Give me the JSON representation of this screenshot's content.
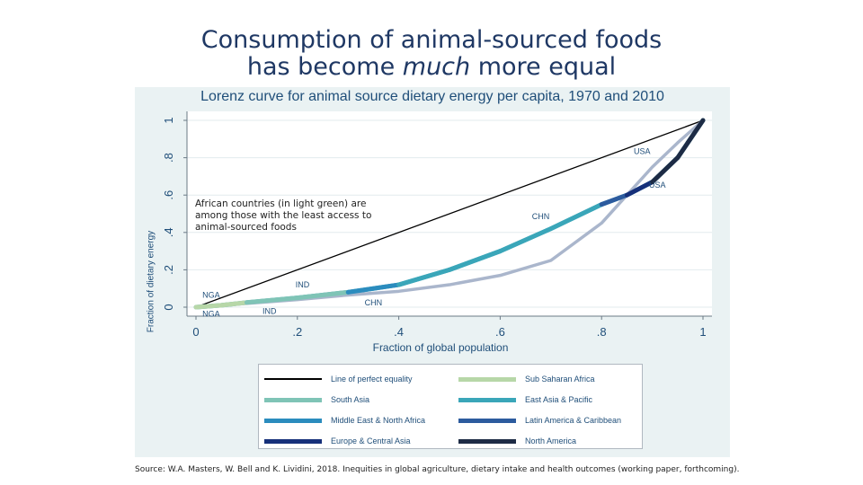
{
  "slide": {
    "title_line1": "Consumption of animal-sourced foods",
    "title_line2_pre": "has become ",
    "title_line2_em": "much",
    "title_line2_post": " more equal",
    "note": "African countries (in light green) are among those with the least access to animal-sourced foods",
    "source": "Source: W.A. Masters, W. Bell and K. Lividini, 2018. Inequities in global agriculture, dietary intake and health outcomes (working paper, forthcoming)."
  },
  "chart_data": {
    "type": "line",
    "title": "Lorenz curve for animal source dietary energy per capita, 1970 and 2010",
    "xlabel": "Fraction of global population",
    "ylabel": "Fraction of dietary energy",
    "xlim": [
      0,
      1
    ],
    "ylim": [
      0,
      1
    ],
    "xticks": [
      "0",
      ".2",
      ".4",
      ".6",
      ".8",
      "1"
    ],
    "yticks": [
      "0",
      ".2",
      ".4",
      ".6",
      ".8",
      "1"
    ],
    "grid": true,
    "legend": "bottom",
    "series": [
      {
        "name": "Line of perfect equality",
        "color": "#000000",
        "x": [
          0,
          1
        ],
        "y": [
          0,
          1
        ]
      },
      {
        "name": "2010",
        "color": "#3aa6b9",
        "x": [
          0,
          0.05,
          0.1,
          0.2,
          0.3,
          0.4,
          0.5,
          0.6,
          0.7,
          0.8,
          0.85,
          0.9,
          0.95,
          1
        ],
        "y": [
          0,
          0.01,
          0.025,
          0.05,
          0.08,
          0.12,
          0.2,
          0.3,
          0.42,
          0.55,
          0.6,
          0.67,
          0.8,
          1
        ]
      },
      {
        "name": "1970",
        "color": "#aab6cc",
        "x": [
          0,
          0.1,
          0.2,
          0.3,
          0.4,
          0.5,
          0.6,
          0.7,
          0.8,
          0.85,
          0.9,
          0.95,
          1
        ],
        "y": [
          0,
          0.02,
          0.04,
          0.065,
          0.085,
          0.12,
          0.17,
          0.25,
          0.45,
          0.6,
          0.75,
          0.88,
          1
        ]
      }
    ],
    "annotations": [
      {
        "text": "USA",
        "x": 0.88,
        "y": 0.82
      },
      {
        "text": "USA",
        "x": 0.91,
        "y": 0.64
      },
      {
        "text": "CHN",
        "x": 0.68,
        "y": 0.47
      },
      {
        "text": "CHN",
        "x": 0.35,
        "y": 0.01
      },
      {
        "text": "IND",
        "x": 0.21,
        "y": 0.105
      },
      {
        "text": "IND",
        "x": 0.145,
        "y": -0.035
      },
      {
        "text": "NGA",
        "x": 0.03,
        "y": 0.05
      },
      {
        "text": "NGA",
        "x": 0.03,
        "y": -0.05
      }
    ],
    "region_legend": [
      {
        "label": "Line of perfect equality",
        "color": "#000000"
      },
      {
        "label": "Sub Saharan Africa",
        "color": "#b7d7a8"
      },
      {
        "label": "South Asia",
        "color": "#7fc4b6"
      },
      {
        "label": "East Asia & Pacific",
        "color": "#3aa6b9"
      },
      {
        "label": "Middle East & North Africa",
        "color": "#2b8cbe"
      },
      {
        "label": "Latin America & Caribbean",
        "color": "#2c5b9e"
      },
      {
        "label": "Europe & Central Asia",
        "color": "#16307a"
      },
      {
        "label": "North America",
        "color": "#1d2b45"
      }
    ]
  }
}
